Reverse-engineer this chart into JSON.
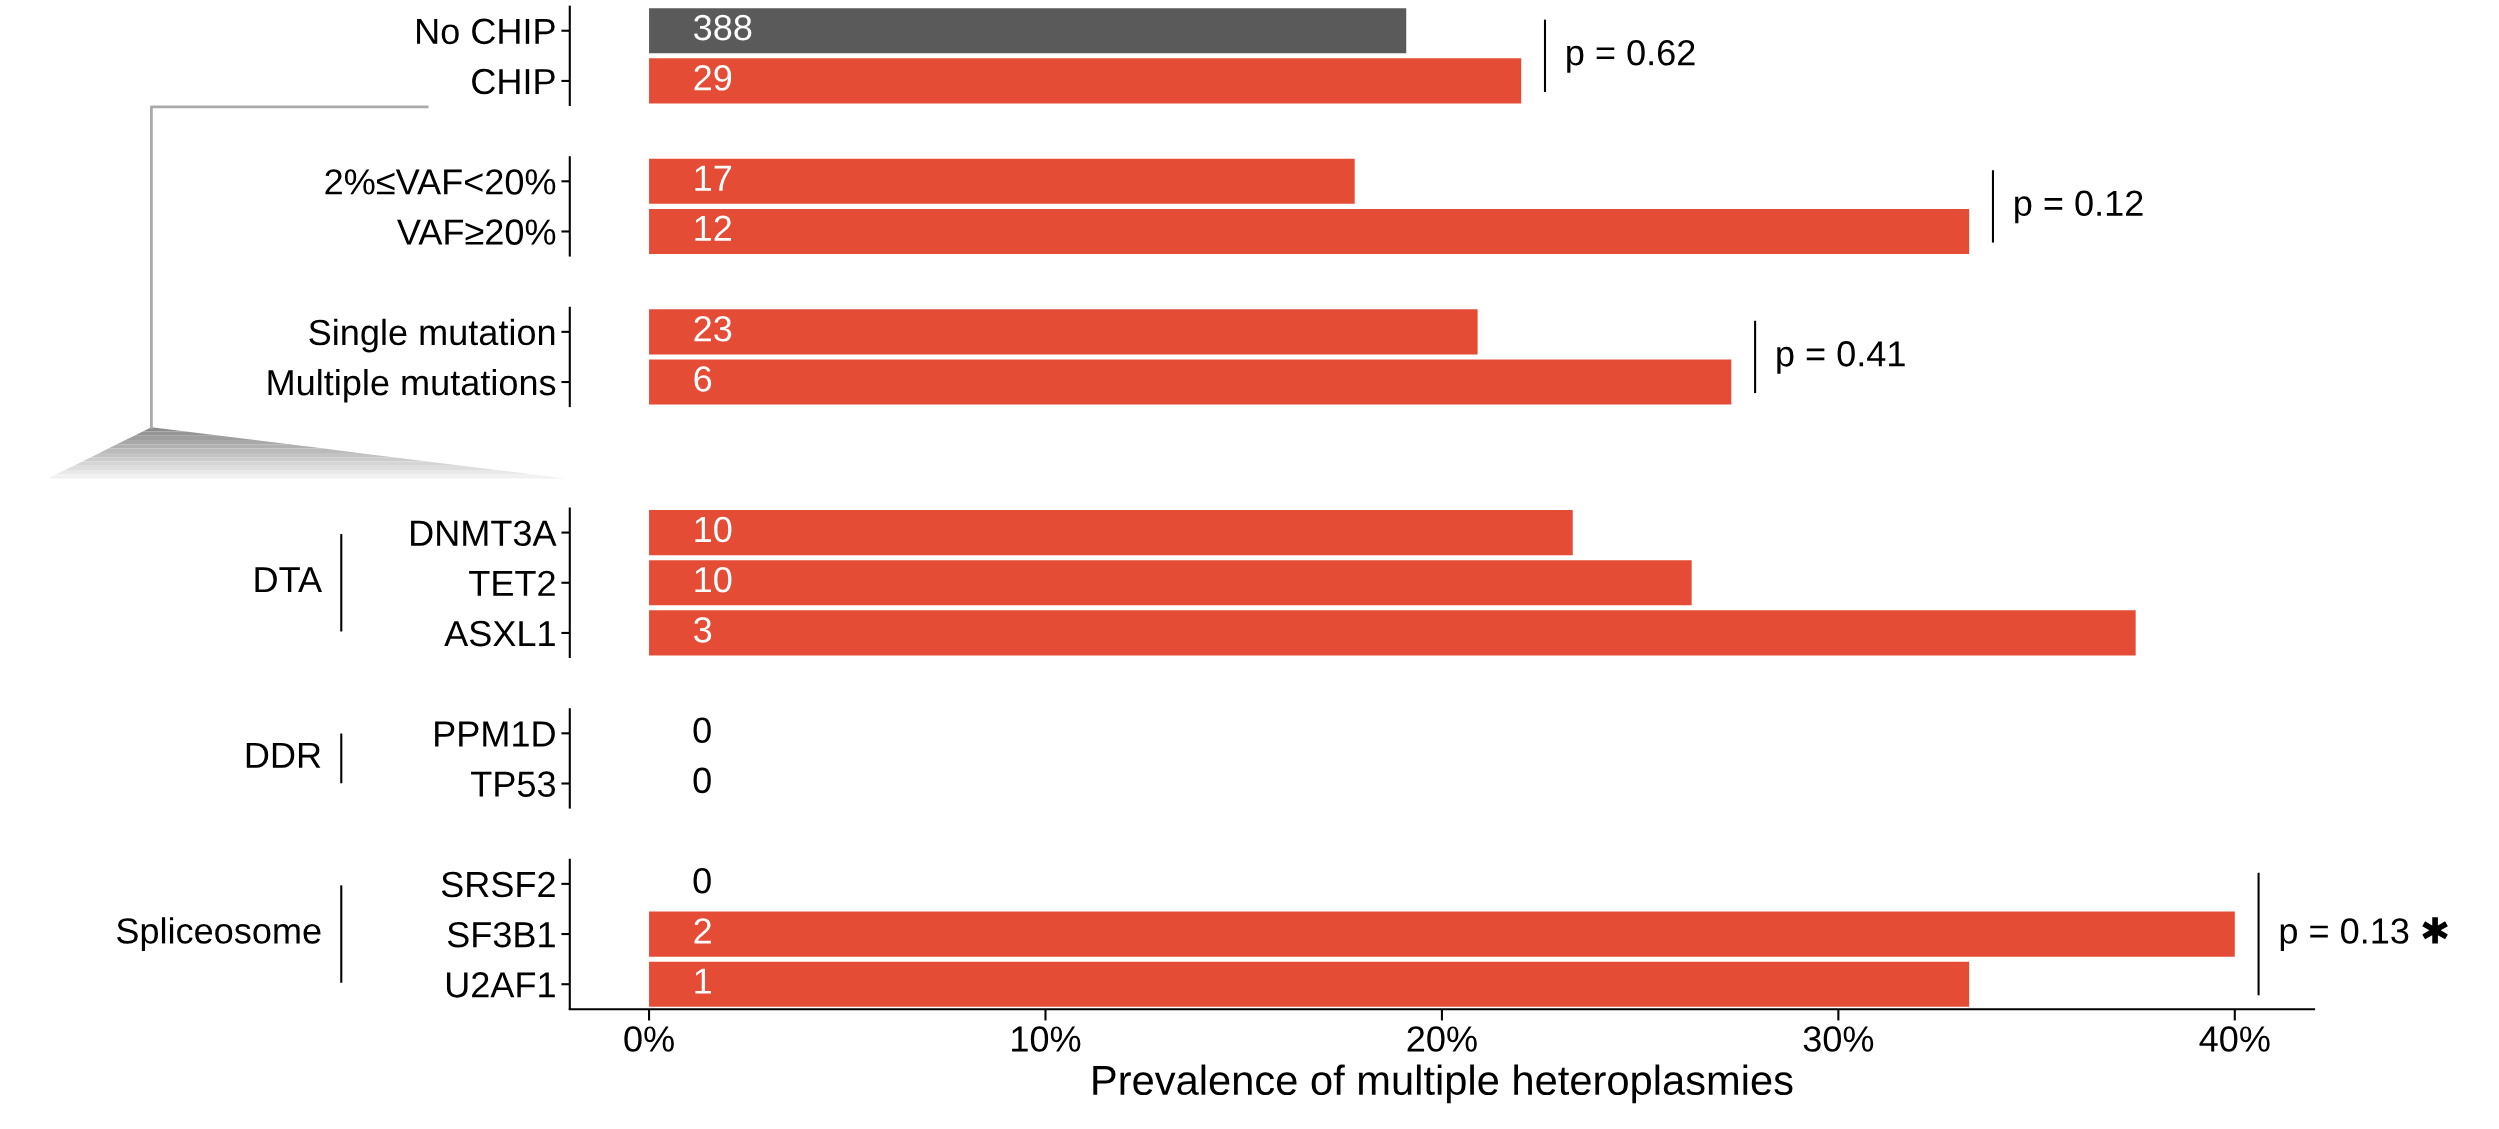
{
  "chart_data": {
    "type": "bar",
    "orientation": "horizontal",
    "xlabel": "Prevalence of multiple heteroplasmies",
    "categories": [
      "No CHIP",
      "CHIP",
      null,
      "2%≤VAF<20%",
      "VAF≥20%",
      null,
      "Single mutation",
      "Multiple mutations",
      null,
      null,
      "DNMT3A",
      "TET2",
      "ASXL1",
      null,
      "PPM1D",
      "TP53",
      null,
      "SRSF2",
      "SF3B1",
      "U2AF1"
    ],
    "values": [
      19.1,
      22.0,
      null,
      17.8,
      33.3,
      null,
      20.9,
      27.3,
      null,
      null,
      23.3,
      26.3,
      37.5,
      null,
      0,
      0,
      null,
      0,
      40.0,
      33.3
    ],
    "colors": [
      "#5a5a5a",
      "#e54c36",
      null,
      "#e54c36",
      "#e54c36",
      null,
      "#e54c36",
      "#e54c36",
      null,
      null,
      "#e54c36",
      "#e54c36",
      "#e54c36",
      null,
      "#e54c36",
      "#e54c36",
      null,
      "#e54c36",
      "#e54c36",
      "#e54c36"
    ],
    "xlim": [
      -2,
      42
    ],
    "xticks": [
      {
        "value": 0,
        "label": "0%"
      },
      {
        "value": 10,
        "label": "10%"
      },
      {
        "value": 20,
        "label": "20%"
      },
      {
        "value": 30,
        "label": "30%"
      },
      {
        "value": 40,
        "label": "40%"
      }
    ],
    "grid": false,
    "legend": false,
    "annotations": [
      {
        "text": "p = 0.62",
        "x": 22.0,
        "y": "CHIP"
      },
      {
        "text": "p = 0.12",
        "x": 33.3,
        "y": "VAF≥20%"
      },
      {
        "text": "p = 0.41",
        "x": 27.3,
        "y": "Multiple mutations"
      },
      {
        "text": "p = 0.13 ✱",
        "x": 40.0,
        "y": "SF3B1"
      },
      {
        "text": "388",
        "x": 1.1,
        "y": "No CHIP"
      },
      {
        "text": "29",
        "x": 1.1,
        "y": "CHIP"
      },
      {
        "text": "17",
        "x": 1.1,
        "y": "2%≤VAF<20%"
      },
      {
        "text": "12",
        "x": 1.1,
        "y": "VAF≥20%"
      },
      {
        "text": "23",
        "x": 1.1,
        "y": "Single mutation"
      },
      {
        "text": "6",
        "x": 1.1,
        "y": "Multiple mutations"
      },
      {
        "text": "10",
        "x": 1.1,
        "y": "DNMT3A"
      },
      {
        "text": "10",
        "x": 1.1,
        "y": "TET2"
      },
      {
        "text": "3",
        "x": 1.1,
        "y": "ASXL1"
      },
      {
        "text": "0",
        "x": 0,
        "y": "PPM1D"
      },
      {
        "text": "0",
        "x": 0,
        "y": "TP53"
      },
      {
        "text": "0",
        "x": 0,
        "y": "SRSF2"
      },
      {
        "text": "2",
        "x": 1.1,
        "y": "SF3B1"
      },
      {
        "text": "1",
        "x": 1.1,
        "y": "U2AF1"
      },
      "DTA",
      "DDR",
      "Spliceosome"
    ]
  }
}
